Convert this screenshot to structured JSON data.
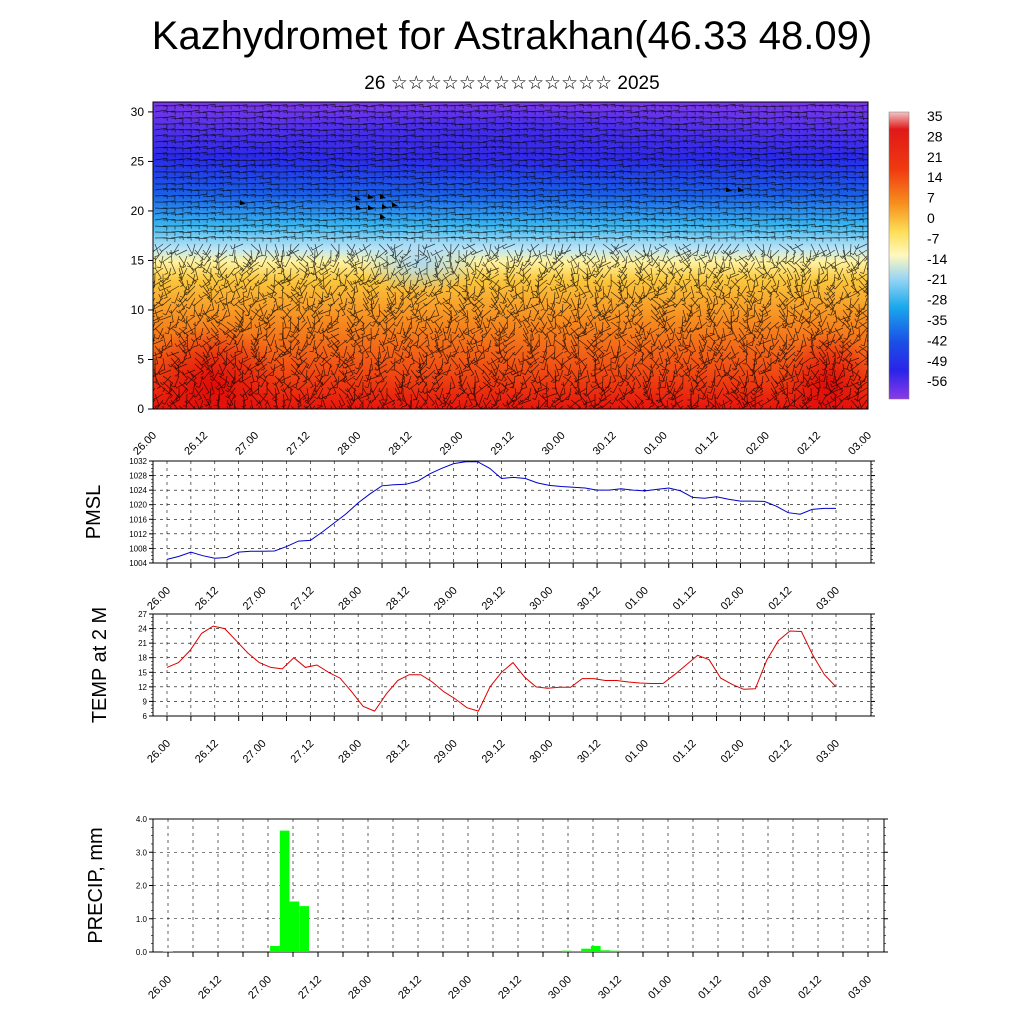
{
  "title": "Kazhydromet for Astrakhan(46.33 48.09)",
  "subtitle": "26 ☆☆☆☆☆☆☆☆☆☆☆☆☆ 2025",
  "time_labels": [
    "26.00",
    "26.12",
    "27.00",
    "27.12",
    "28.00",
    "28.12",
    "29.00",
    "29.12",
    "30.00",
    "30.12",
    "01.00",
    "01.12",
    "02.00",
    "02.12",
    "03.00"
  ],
  "colorbar": {
    "labels": [
      "35",
      "28",
      "21",
      "14",
      "7",
      "0",
      "-7",
      "-14",
      "-21",
      "-28",
      "-35",
      "-42",
      "-49",
      "-56"
    ]
  },
  "chart_data": [
    {
      "type": "heatmap",
      "name": "temperature-wind cross-section",
      "yticks": [
        0,
        5,
        10,
        15,
        20,
        25,
        30
      ],
      "ylim": [
        0,
        31
      ],
      "x_labels_ref": "time_labels",
      "legend": "colorbar right"
    },
    {
      "type": "line",
      "ylabel": "PMSL",
      "ylim": [
        1004,
        1032
      ],
      "yticks": [
        1004,
        1008,
        1012,
        1016,
        1020,
        1024,
        1028,
        1032
      ],
      "color": "#0000cc",
      "values": [
        1005,
        1005.8,
        1007,
        1006,
        1005.3,
        1005.5,
        1007,
        1007.2,
        1007.2,
        1007.3,
        1008.5,
        1010,
        1010.2,
        1012.5,
        1015,
        1017.5,
        1020.5,
        1023,
        1025.2,
        1025.5,
        1025.6,
        1026.5,
        1028.5,
        1030,
        1031.3,
        1031.8,
        1031.8,
        1030,
        1027.2,
        1027.5,
        1027.2,
        1026,
        1025.3,
        1025,
        1024.8,
        1024.6,
        1024,
        1024,
        1024.4,
        1024,
        1023.8,
        1024.2,
        1024.6,
        1023.8,
        1022,
        1021.8,
        1022.2,
        1021.5,
        1021,
        1021,
        1020.9,
        1019.6,
        1017.8,
        1017.4,
        1018.7,
        1019,
        1019
      ]
    },
    {
      "type": "line",
      "ylabel": "TEMP at 2 M",
      "ylim": [
        6,
        27
      ],
      "yticks": [
        6,
        9,
        12,
        15,
        18,
        21,
        24,
        27
      ],
      "color": "#dd0000",
      "values": [
        16,
        17,
        19.5,
        23,
        24.5,
        24,
        21.5,
        19,
        17,
        16,
        15.7,
        18,
        16,
        16.5,
        15,
        13.8,
        11,
        8,
        7,
        10.5,
        13.3,
        14.5,
        14.5,
        13,
        11,
        9.5,
        7.7,
        7,
        12,
        15,
        17,
        14,
        12,
        11.7,
        11.9,
        11.9,
        13.7,
        13.7,
        13.3,
        13.3,
        13,
        12.8,
        12.7,
        12.7,
        14.5,
        16.5,
        18.5,
        17.6,
        13.8,
        12.5,
        11.5,
        11.6,
        17.5,
        21.5,
        23.5,
        23.4,
        18.5,
        14.5,
        12
      ]
    },
    {
      "type": "bar",
      "ylabel": "PRECIP, mm",
      "ylim": [
        0,
        4
      ],
      "yticks": [
        "0.0",
        "1.0",
        "2.0",
        "3.0",
        "4.0"
      ],
      "color": "#00ff00",
      "values": [
        0.02,
        0,
        0,
        0,
        0,
        0,
        0,
        0,
        0,
        0,
        0,
        0.18,
        3.65,
        1.52,
        1.38,
        0,
        0,
        0,
        0,
        0,
        0,
        0,
        0,
        0,
        0,
        0,
        0,
        0,
        0,
        0,
        0,
        0,
        0,
        0,
        0,
        0,
        0,
        0,
        0,
        0,
        0,
        0.04,
        0.03,
        0.1,
        0.18,
        0.05,
        0.04,
        0,
        0,
        0,
        0,
        0,
        0,
        0,
        0,
        0,
        0,
        0,
        0,
        0,
        0,
        0,
        0,
        0,
        0,
        0,
        0,
        0,
        0,
        0,
        0,
        0,
        0
      ]
    }
  ]
}
